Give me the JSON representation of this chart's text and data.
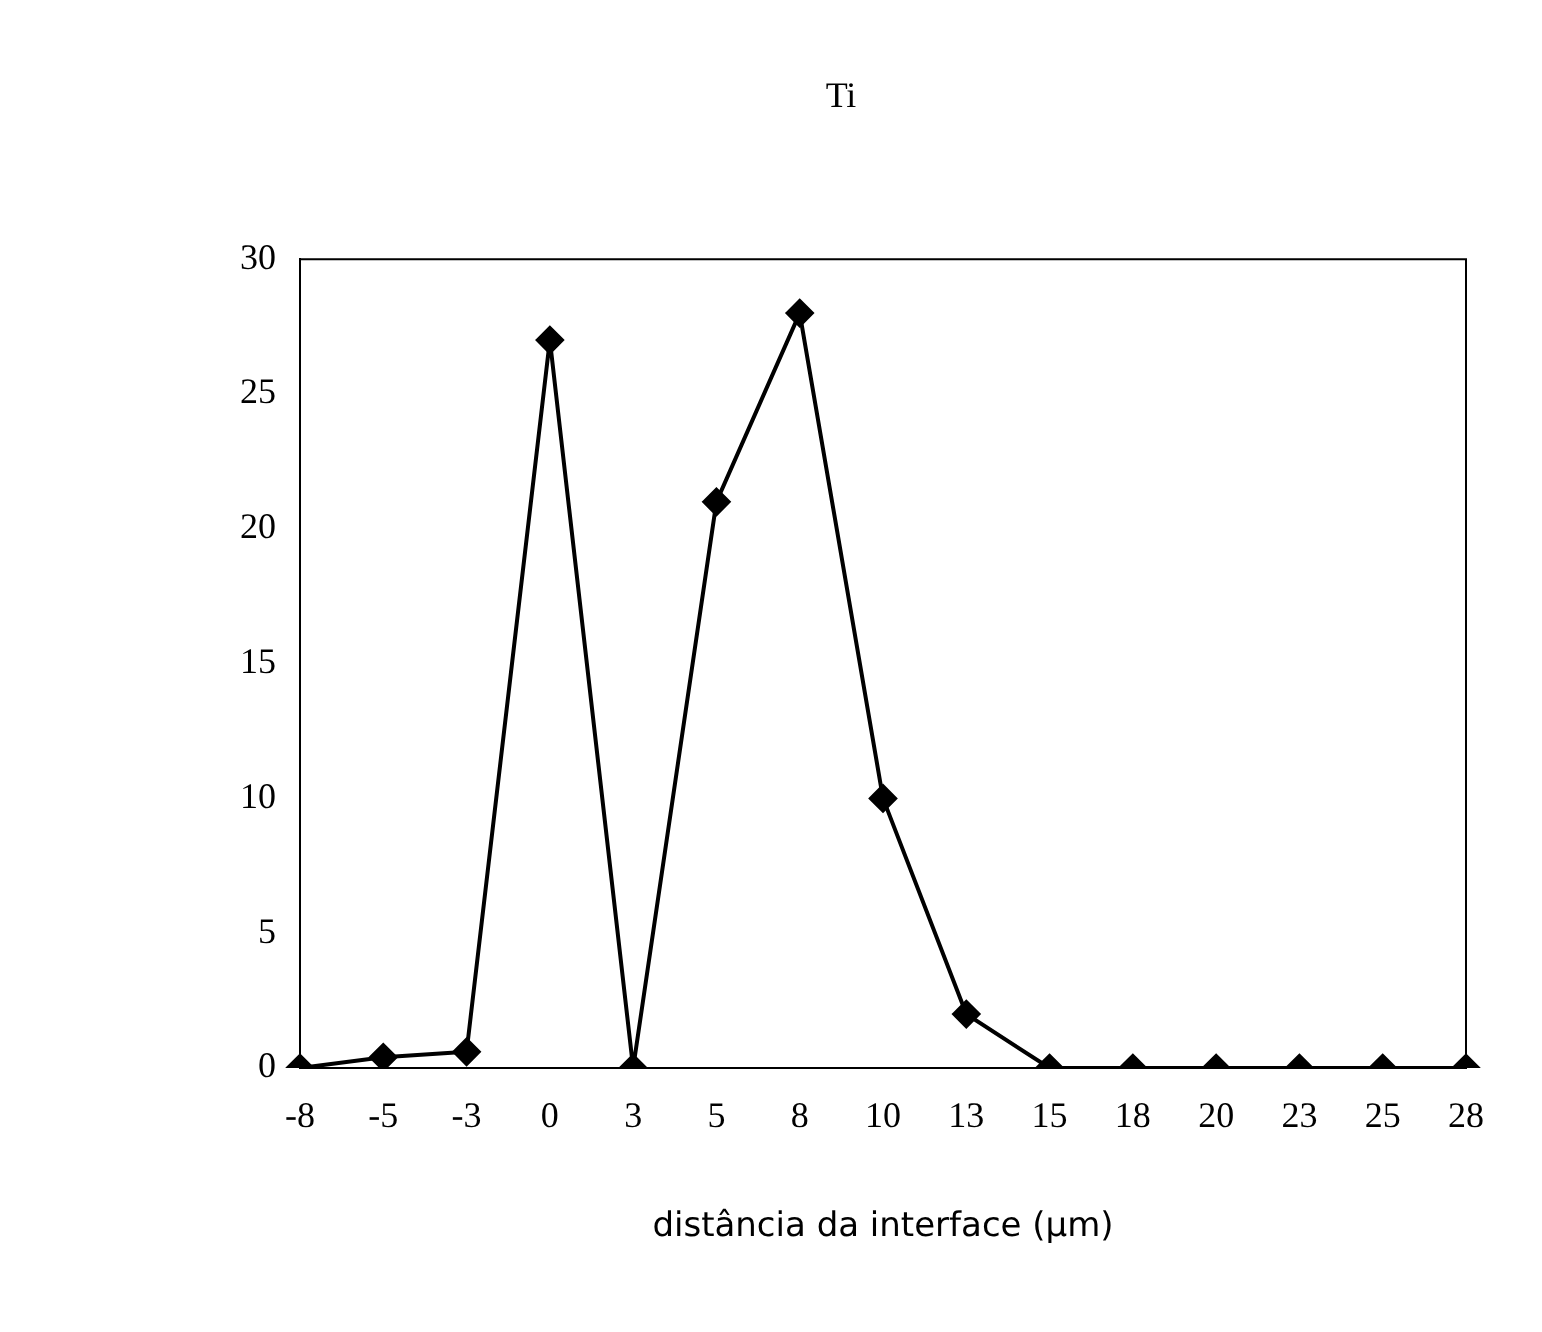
{
  "chart_data": {
    "type": "line",
    "title": "Ti",
    "xlabel": "distância da interface (μm)",
    "categories": [
      "-8",
      "-5",
      "-3",
      "0",
      "3",
      "5",
      "8",
      "10",
      "13",
      "15",
      "18",
      "20",
      "23",
      "25",
      "28"
    ],
    "series": [
      {
        "color": "#000000",
        "values": [
          0,
          0.4,
          0.6,
          27,
          0,
          21,
          28,
          10,
          2,
          0,
          0,
          0,
          0,
          0,
          0
        ]
      }
    ],
    "ylim": [
      0,
      30
    ],
    "yticks": [
      0,
      5,
      10,
      15,
      20,
      25,
      30
    ],
    "grid": false,
    "legend": false,
    "marker": "diamond",
    "line_style": "solid"
  }
}
